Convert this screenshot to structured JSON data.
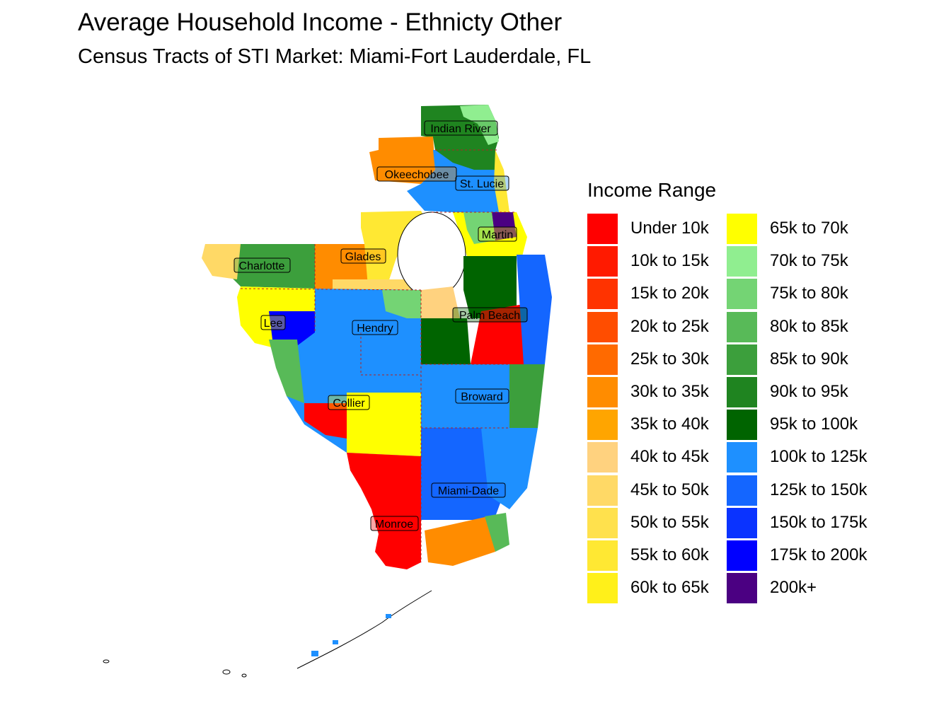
{
  "title": "Average Household Income - Ethnicty Other",
  "subtitle": "Census Tracts of STI Market: Miami-Fort Lauderdale, FL",
  "legend": {
    "title": "Income Range",
    "items": [
      {
        "label": "Under 10k",
        "color": "#FF0000"
      },
      {
        "label": "10k to 15k",
        "color": "#FF1A00"
      },
      {
        "label": "15k to 20k",
        "color": "#FF3300"
      },
      {
        "label": "20k to 25k",
        "color": "#FF4D00"
      },
      {
        "label": "25k to 30k",
        "color": "#FF6A00"
      },
      {
        "label": "30k to 35k",
        "color": "#FF8C00"
      },
      {
        "label": "35k to 40k",
        "color": "#FFA500"
      },
      {
        "label": "40k to 45k",
        "color": "#FFD27F"
      },
      {
        "label": "45k to 50k",
        "color": "#FFD966"
      },
      {
        "label": "50k to 55k",
        "color": "#FFE14D"
      },
      {
        "label": "55k to 60k",
        "color": "#FFE833"
      },
      {
        "label": "60k to 65k",
        "color": "#FFF01A"
      },
      {
        "label": "65k to 70k",
        "color": "#FFFF00"
      },
      {
        "label": "70k to 75k",
        "color": "#90EE90"
      },
      {
        "label": "75k to 80k",
        "color": "#74D474"
      },
      {
        "label": "80k to 85k",
        "color": "#58BA58"
      },
      {
        "label": "85k to 90k",
        "color": "#3C9F3C"
      },
      {
        "label": "90k to 95k",
        "color": "#1F8420"
      },
      {
        "label": "95k to 100k",
        "color": "#006400"
      },
      {
        "label": "100k to 125k",
        "color": "#1E90FF"
      },
      {
        "label": "125k to 150k",
        "color": "#1466FF"
      },
      {
        "label": "150k to 175k",
        "color": "#0A33FF"
      },
      {
        "label": "175k to 200k",
        "color": "#0000FF"
      },
      {
        "label": "200k+",
        "color": "#4B0082"
      }
    ]
  },
  "counties": [
    {
      "name": "Indian River"
    },
    {
      "name": "Okeechobee"
    },
    {
      "name": "St. Lucie"
    },
    {
      "name": "Martin"
    },
    {
      "name": "Glades"
    },
    {
      "name": "Charlotte"
    },
    {
      "name": "Palm Beach"
    },
    {
      "name": "Lee"
    },
    {
      "name": "Hendry"
    },
    {
      "name": "Broward"
    },
    {
      "name": "Collier"
    },
    {
      "name": "Miami-Dade"
    },
    {
      "name": "Monroe"
    }
  ]
}
